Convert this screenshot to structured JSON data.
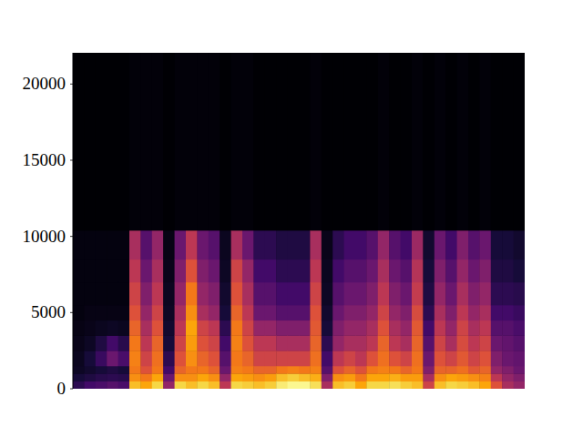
{
  "chart_data": {
    "type": "heatmap",
    "xlim": [
      0,
      40
    ],
    "ylim": [
      0,
      22050
    ],
    "yticks": [
      0,
      5000,
      10000,
      15000,
      20000
    ],
    "tick_labels": "y",
    "grid": false,
    "y_bins": [
      0,
      500,
      1000,
      1500,
      2500,
      3500,
      4500,
      5500,
      7000,
      8500,
      10400,
      22050
    ],
    "z_range": [
      0,
      100
    ],
    "values": [
      [
        15,
        10,
        6,
        5,
        4,
        3,
        2,
        2,
        2,
        2,
        0
      ],
      [
        20,
        12,
        8,
        10,
        6,
        4,
        3,
        2,
        2,
        2,
        0
      ],
      [
        22,
        14,
        10,
        18,
        12,
        5,
        3,
        2,
        2,
        2,
        0
      ],
      [
        25,
        15,
        12,
        30,
        20,
        6,
        3,
        2,
        2,
        2,
        0
      ],
      [
        22,
        14,
        10,
        22,
        14,
        5,
        3,
        2,
        2,
        2,
        0
      ],
      [
        85,
        75,
        70,
        72,
        70,
        65,
        60,
        55,
        50,
        45,
        1
      ],
      [
        80,
        70,
        60,
        55,
        50,
        45,
        40,
        35,
        30,
        25,
        1
      ],
      [
        90,
        80,
        70,
        68,
        65,
        60,
        55,
        50,
        45,
        40,
        1
      ],
      [
        40,
        30,
        20,
        15,
        10,
        8,
        6,
        5,
        4,
        3,
        0
      ],
      [
        90,
        75,
        65,
        60,
        55,
        50,
        45,
        40,
        35,
        30,
        1
      ],
      [
        85,
        75,
        70,
        75,
        78,
        80,
        75,
        70,
        60,
        50,
        1
      ],
      [
        90,
        80,
        70,
        65,
        60,
        55,
        45,
        40,
        35,
        30,
        1
      ],
      [
        85,
        75,
        65,
        60,
        55,
        50,
        40,
        35,
        30,
        25,
        1
      ],
      [
        50,
        40,
        30,
        25,
        20,
        15,
        10,
        8,
        6,
        5,
        0
      ],
      [
        90,
        80,
        72,
        70,
        72,
        70,
        65,
        60,
        55,
        45,
        1
      ],
      [
        88,
        78,
        70,
        65,
        60,
        55,
        50,
        45,
        40,
        30,
        1
      ],
      [
        85,
        75,
        65,
        55,
        50,
        40,
        30,
        25,
        20,
        15,
        0
      ],
      [
        88,
        78,
        65,
        55,
        50,
        40,
        30,
        25,
        20,
        15,
        0
      ],
      [
        95,
        85,
        70,
        55,
        45,
        35,
        25,
        20,
        15,
        12,
        0
      ],
      [
        98,
        88,
        72,
        55,
        45,
        35,
        25,
        20,
        15,
        12,
        0
      ],
      [
        98,
        85,
        70,
        55,
        45,
        35,
        25,
        20,
        15,
        12,
        0
      ],
      [
        92,
        82,
        72,
        68,
        65,
        62,
        60,
        55,
        50,
        45,
        1
      ],
      [
        45,
        35,
        25,
        20,
        15,
        10,
        8,
        6,
        5,
        4,
        0
      ],
      [
        85,
        75,
        60,
        50,
        40,
        35,
        30,
        25,
        20,
        15,
        0
      ],
      [
        88,
        78,
        65,
        55,
        45,
        40,
        35,
        30,
        25,
        20,
        0
      ],
      [
        80,
        70,
        60,
        50,
        45,
        40,
        35,
        30,
        25,
        20,
        0
      ],
      [
        90,
        80,
        70,
        60,
        50,
        45,
        40,
        35,
        30,
        25,
        0
      ],
      [
        90,
        80,
        72,
        68,
        65,
        60,
        55,
        50,
        45,
        40,
        1
      ],
      [
        92,
        82,
        70,
        60,
        50,
        45,
        40,
        35,
        30,
        25,
        0
      ],
      [
        88,
        78,
        65,
        55,
        45,
        40,
        35,
        30,
        25,
        20,
        0
      ],
      [
        85,
        78,
        70,
        68,
        65,
        62,
        58,
        52,
        48,
        42,
        1
      ],
      [
        55,
        45,
        35,
        30,
        25,
        20,
        15,
        12,
        10,
        8,
        0
      ],
      [
        85,
        75,
        65,
        60,
        55,
        50,
        45,
        40,
        35,
        30,
        1
      ],
      [
        90,
        80,
        65,
        55,
        45,
        40,
        35,
        30,
        25,
        20,
        0
      ],
      [
        88,
        78,
        68,
        62,
        58,
        55,
        50,
        45,
        40,
        35,
        1
      ],
      [
        85,
        75,
        62,
        55,
        50,
        45,
        40,
        35,
        30,
        25,
        0
      ],
      [
        80,
        72,
        65,
        60,
        55,
        50,
        45,
        40,
        35,
        30,
        1
      ],
      [
        60,
        50,
        40,
        35,
        30,
        25,
        20,
        15,
        12,
        10,
        0
      ],
      [
        45,
        40,
        35,
        30,
        28,
        25,
        20,
        15,
        12,
        10,
        0
      ],
      [
        40,
        35,
        30,
        28,
        25,
        22,
        18,
        14,
        10,
        8,
        0
      ]
    ]
  }
}
